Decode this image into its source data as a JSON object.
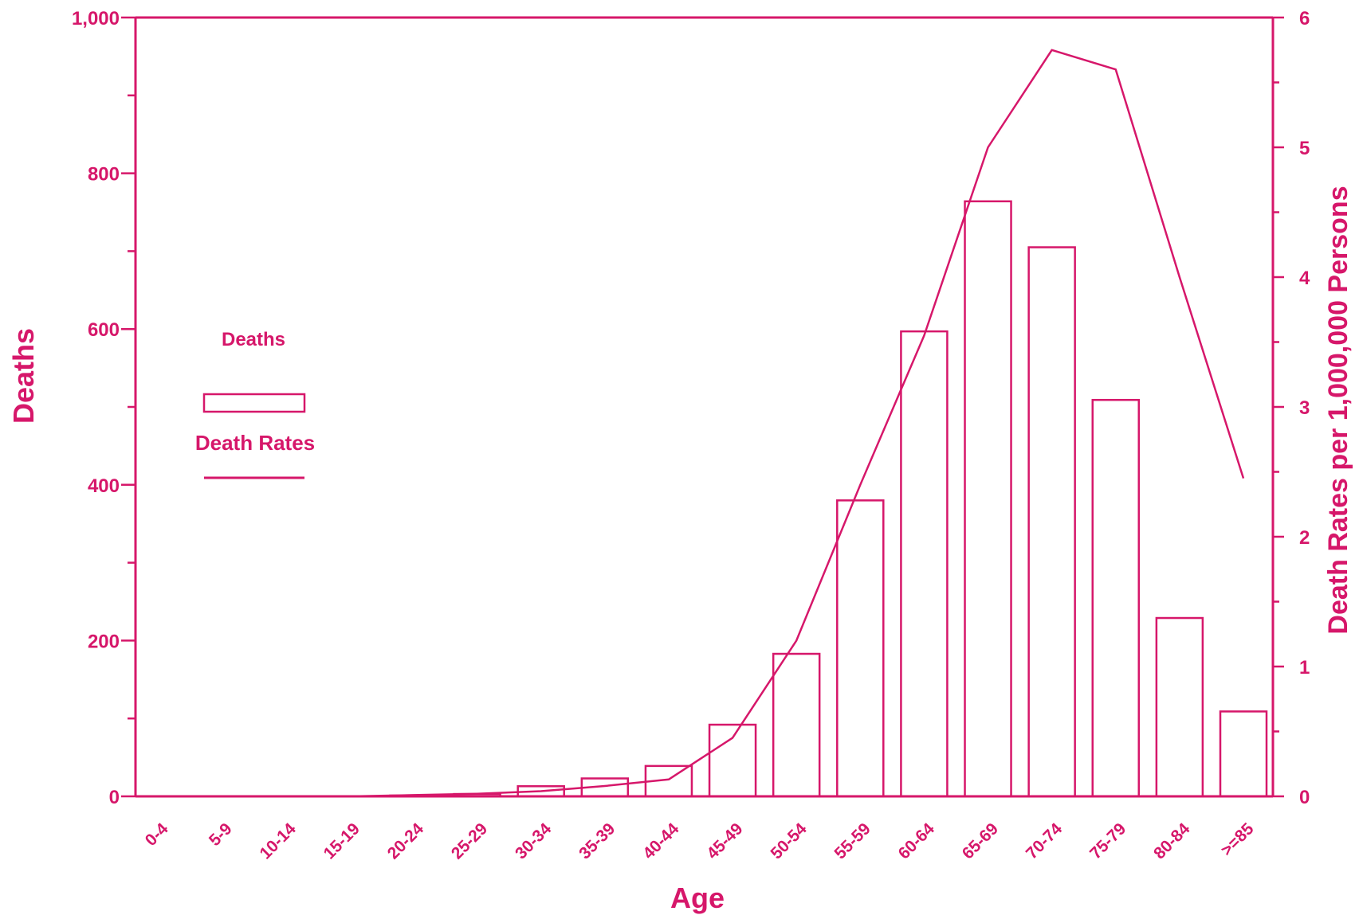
{
  "colors": {
    "ink": "#d6176a",
    "background": "#ffffff"
  },
  "chart_data": {
    "type": "bar",
    "categories": [
      "0-4",
      "5-9",
      "10-14",
      "15-19",
      "20-24",
      "25-29",
      "30-34",
      "35-39",
      "40-44",
      "45-49",
      "50-54",
      "55-59",
      "60-64",
      "65-69",
      "70-74",
      "75-79",
      "80-84",
      ">=85"
    ],
    "series": [
      {
        "name": "Deaths",
        "type": "bar",
        "axis": "left",
        "values": [
          0,
          0,
          0,
          0,
          1,
          3,
          13,
          23,
          39,
          92,
          183,
          380,
          597,
          764,
          705,
          509,
          229,
          109
        ]
      },
      {
        "name": "Death Rates",
        "type": "line",
        "axis": "right",
        "values": [
          0,
          0,
          0,
          0,
          0.01,
          0.02,
          0.04,
          0.08,
          0.13,
          0.45,
          1.2,
          2.4,
          3.55,
          5.0,
          5.75,
          5.6,
          4.0,
          2.45
        ]
      }
    ],
    "xlabel": "Age",
    "ylabel": "Deaths",
    "y2label": "Death Rates per 1,000,000 Persons",
    "ylim": [
      0,
      1000
    ],
    "y2lim": [
      0,
      6
    ],
    "yticks": [
      "0",
      "200",
      "400",
      "600",
      "800",
      "1,000"
    ],
    "y2ticks": [
      "0",
      "1",
      "2",
      "3",
      "4",
      "5",
      "6"
    ],
    "legend": {
      "placement": "left",
      "entries": [
        "Deaths",
        "Death Rates"
      ]
    },
    "grid": false
  }
}
